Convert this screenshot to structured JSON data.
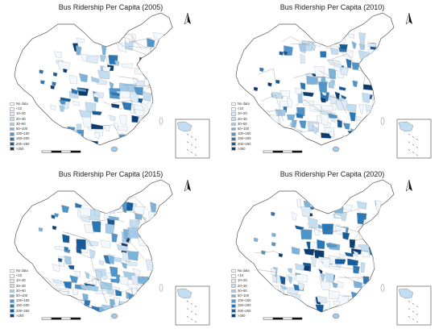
{
  "panels": [
    {
      "title": "Bus Ridership Per Capita (2005)",
      "year": 2005
    },
    {
      "title": "Bus Ridership Per Capita (2010)",
      "year": 2010
    },
    {
      "title": "Bus Ridership Per Capita (2015)",
      "year": 2015
    },
    {
      "title": "Bus Ridership Per Capita (2020)",
      "year": 2020
    }
  ],
  "legend": {
    "items": [
      {
        "label": "No data",
        "color": "#ffffff"
      },
      {
        "label": "<10",
        "color": "#f2f8fd"
      },
      {
        "label": "10~20",
        "color": "#dcebf7"
      },
      {
        "label": "20~30",
        "color": "#c2dcf0"
      },
      {
        "label": "30~50",
        "color": "#a3cae6"
      },
      {
        "label": "50~100",
        "color": "#7bb2da"
      },
      {
        "label": "100~150",
        "color": "#4f95c9"
      },
      {
        "label": "150~200",
        "color": "#2b77b5"
      },
      {
        "label": "200~250",
        "color": "#155b99"
      },
      {
        "label": ">250",
        "color": "#0b3d72"
      }
    ]
  },
  "north_arrow": "north-arrow-icon",
  "map_style": {
    "boundary_color": "#8a8a8a",
    "fill_palette": [
      "#f2f8fd",
      "#dcebf7",
      "#c2dcf0",
      "#a3cae6",
      "#7bb2da",
      "#4f95c9",
      "#2b77b5",
      "#155b99",
      "#0b3d72"
    ]
  }
}
